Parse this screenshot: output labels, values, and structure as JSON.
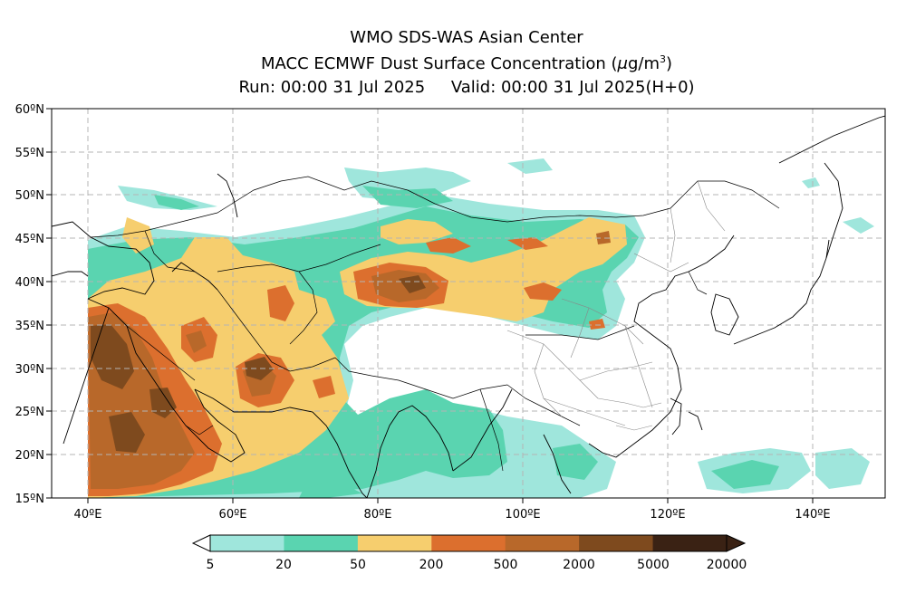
{
  "header": {
    "line1": "WMO SDS-WAS Asian Center",
    "line2_text": "MACC ECMWF Dust Surface Concentration (",
    "line2_mu": "μ",
    "line2_unit": "g/m",
    "line2_exp": "3",
    "line2_close": ")",
    "line3": "Run: 00:00 31 Jul 2025     Valid: 00:00 31 Jul 2025(H+0)"
  },
  "axes": {
    "lat_labels": [
      "60ºN",
      "55ºN",
      "50ºN",
      "45ºN",
      "40ºN",
      "35ºN",
      "30ºN",
      "25ºN",
      "20ºN",
      "15ºN"
    ],
    "lon_labels": [
      "40ºE",
      "60ºE",
      "80ºE",
      "100ºE",
      "120ºE",
      "140ºE"
    ]
  },
  "colorbar": {
    "levels": [
      "5",
      "20",
      "50",
      "200",
      "500",
      "2000",
      "5000",
      "20000"
    ],
    "colors": [
      "#9fe6dc",
      "#5ad4b0",
      "#f6ce6e",
      "#dc6f2e",
      "#b8682a",
      "#7e4a1e",
      "#3a2214"
    ]
  },
  "map": {
    "background": "#ffffff",
    "grid_color": "#b4b4b4",
    "border_color": "#000000",
    "province_color": "#888888"
  }
}
